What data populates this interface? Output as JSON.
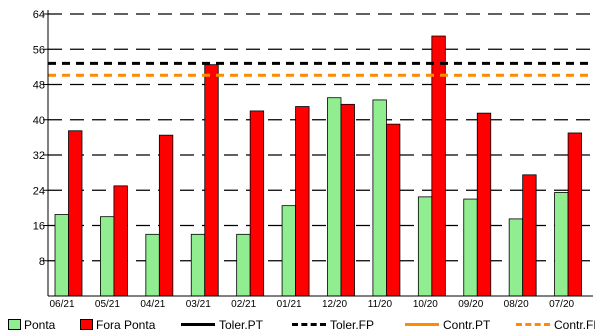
{
  "chart_data": {
    "type": "bar",
    "categories": [
      "06/21",
      "05/21",
      "04/21",
      "03/21",
      "02/21",
      "01/21",
      "12/20",
      "11/20",
      "10/20",
      "09/20",
      "08/20",
      "07/20"
    ],
    "series": [
      {
        "name": "Ponta",
        "color": "#90ee90",
        "values": [
          18.5,
          18,
          14,
          14,
          14,
          20.5,
          45,
          44.5,
          22.5,
          22,
          17.5,
          23.5
        ]
      },
      {
        "name": "Fora Ponta",
        "color": "#ff0000",
        "values": [
          37.5,
          25,
          36.5,
          52.5,
          42,
          43,
          43.5,
          39,
          59,
          41.5,
          27.5,
          37
        ]
      }
    ],
    "reference_lines": [
      {
        "name": "Toler.PT",
        "value": 52.8,
        "color": "#000000",
        "style": "dashed"
      },
      {
        "name": "Toler.FP",
        "value": 52.8,
        "color": "#000000",
        "style": "dashed"
      },
      {
        "name": "Contr.PT",
        "value": 50.1,
        "color": "#ff8c00",
        "style": "dashed"
      },
      {
        "name": "Contr.FP",
        "value": 50.1,
        "color": "#ff8c00",
        "style": "dashed"
      }
    ],
    "yticks": [
      8,
      16,
      24,
      32,
      40,
      48,
      56,
      64
    ],
    "ylim": [
      0,
      64
    ],
    "grid": true,
    "legend_position": "bottom"
  },
  "legend": [
    {
      "label": "Ponta",
      "kind": "swatch",
      "color": "#90ee90"
    },
    {
      "label": "Fora Ponta",
      "kind": "swatch",
      "color": "#ff0000"
    },
    {
      "label": "Toler.PT",
      "kind": "line",
      "color": "#000000",
      "style": "solid"
    },
    {
      "label": "Toler.FP",
      "kind": "line",
      "color": "#000000",
      "style": "dashed"
    },
    {
      "label": "Contr.PT",
      "kind": "line",
      "color": "#ff8c00",
      "style": "solid"
    },
    {
      "label": "Contr.FP",
      "kind": "line",
      "color": "#ff8c00",
      "style": "dashed"
    }
  ]
}
